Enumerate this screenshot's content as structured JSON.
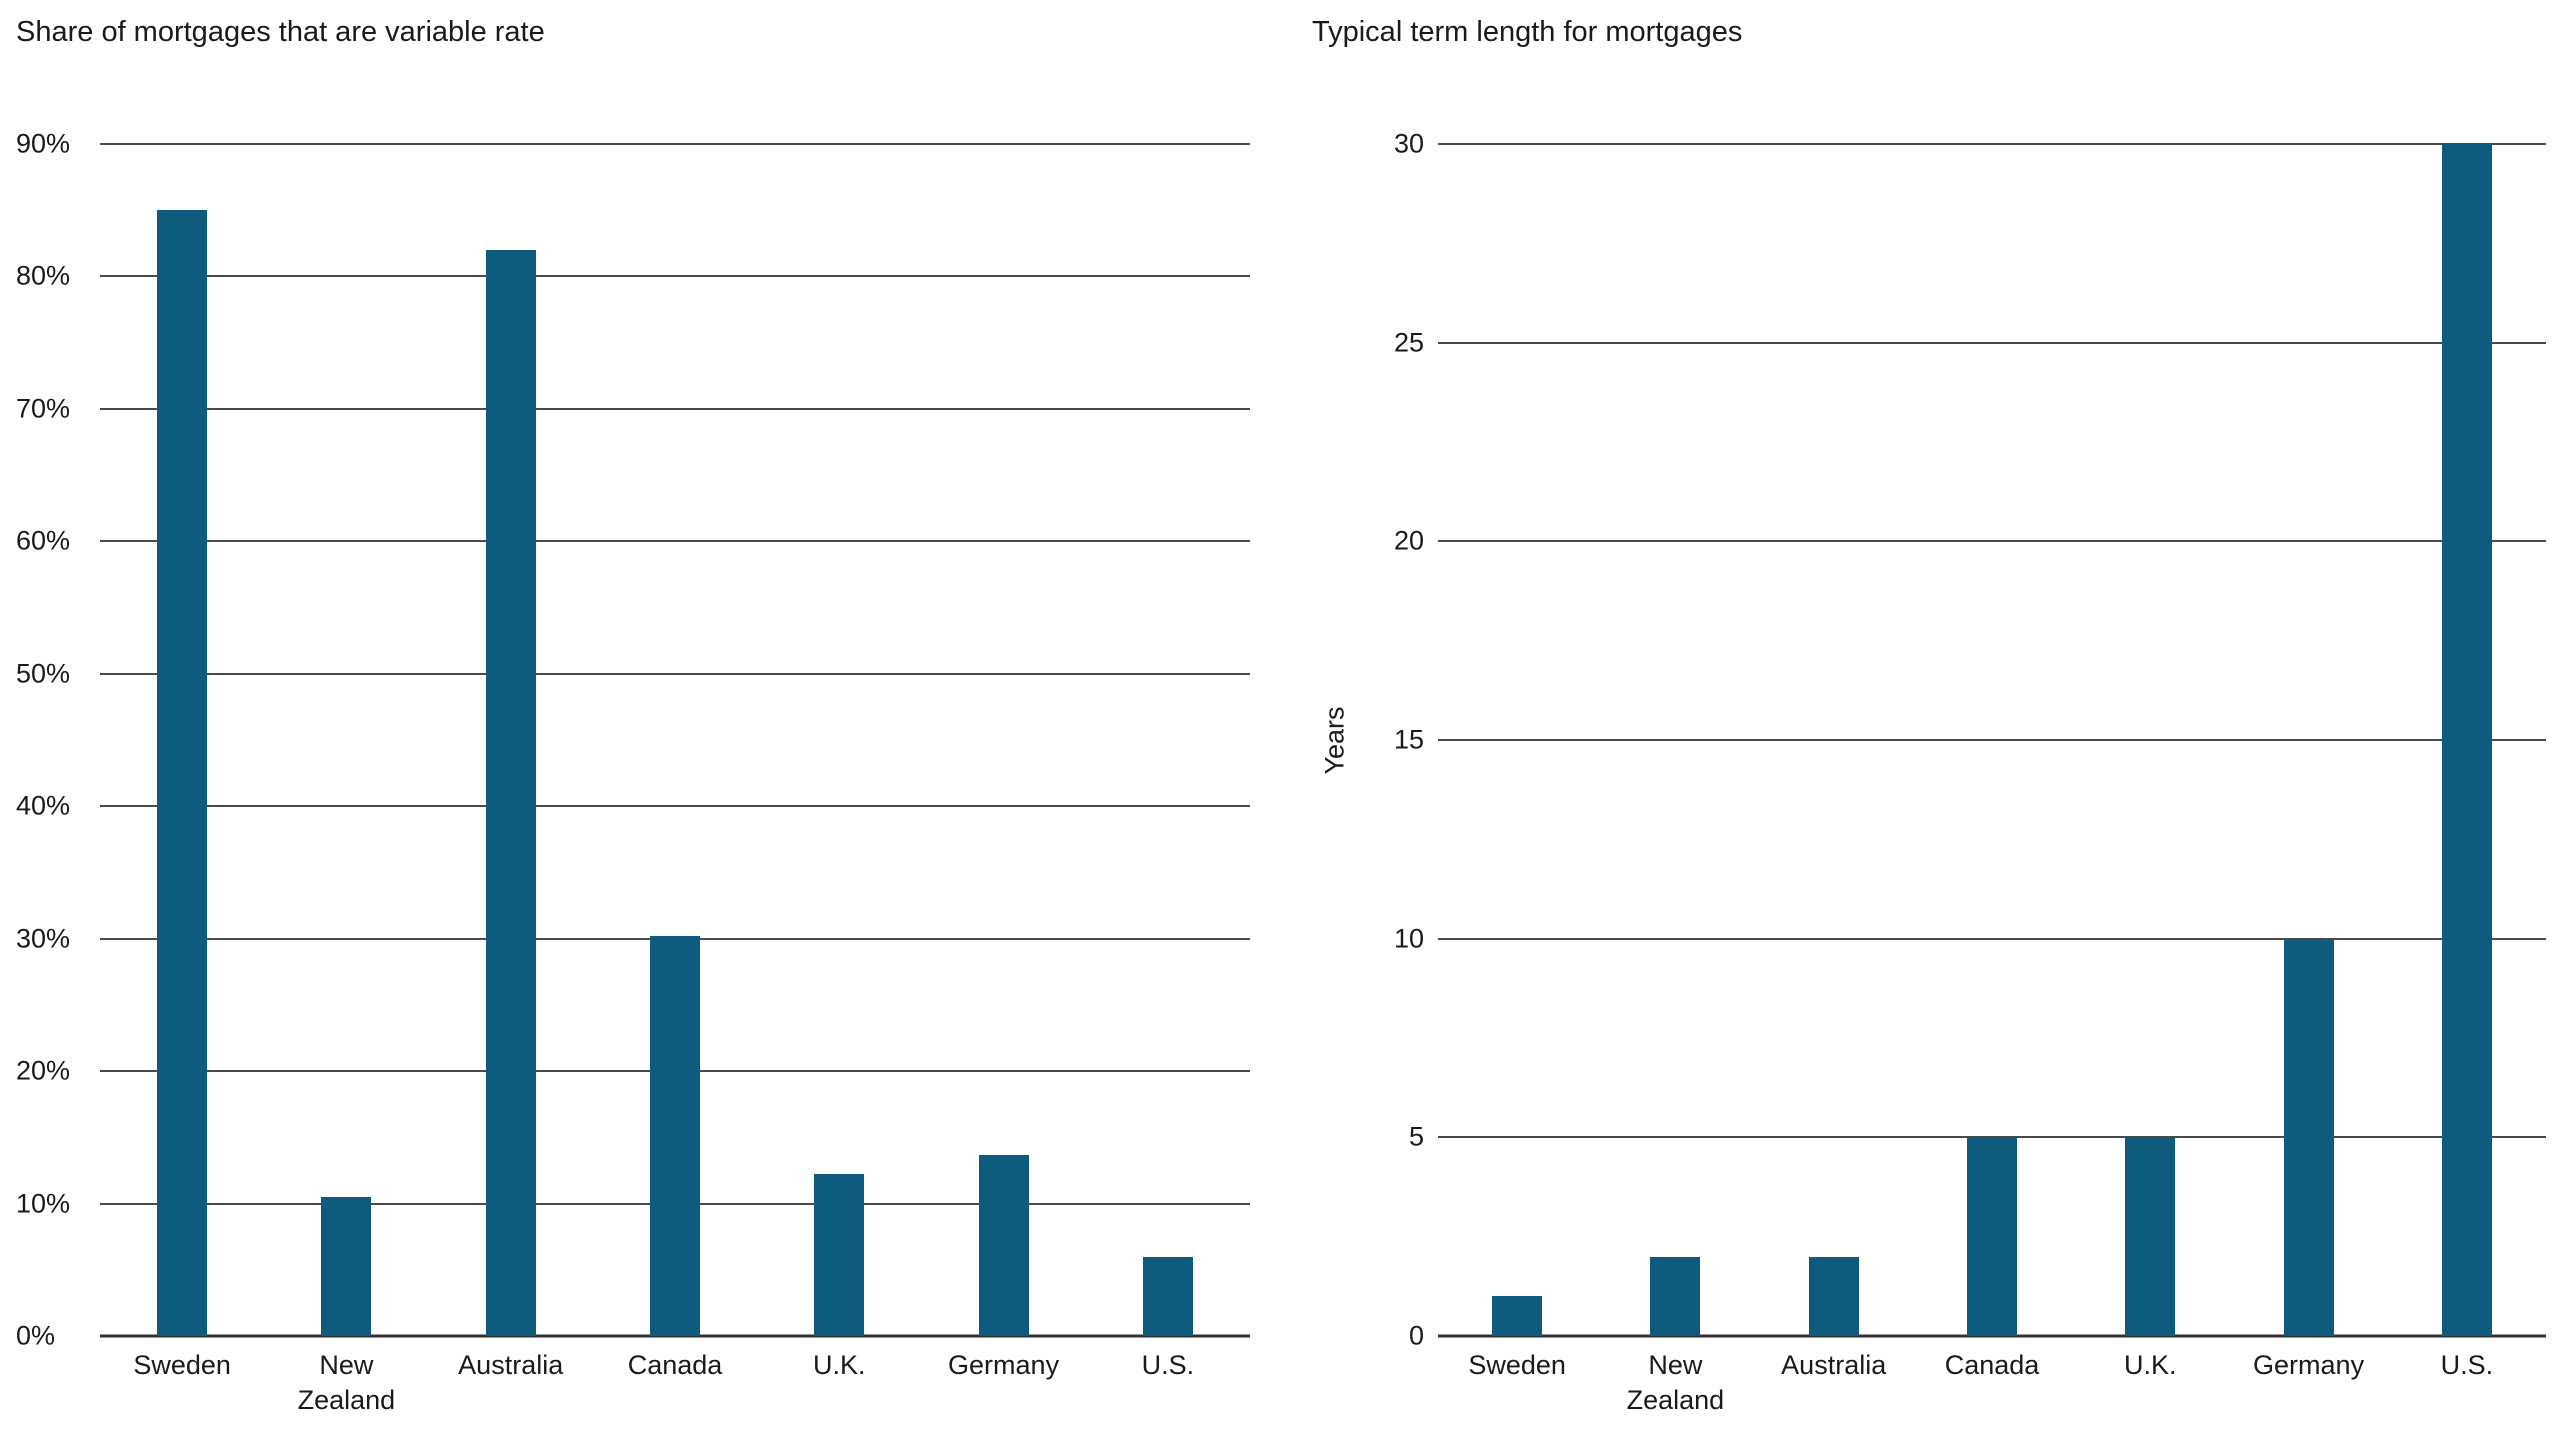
{
  "figure": {
    "background": "#ffffff"
  },
  "colors": {
    "bar": "#0d5c7e",
    "gridline": "#4a4a4a",
    "axis": "#333333",
    "text": "#1a1a1a"
  },
  "chart_data": [
    {
      "type": "bar",
      "title": "Share of mortgages that are variable rate",
      "ylabel": "",
      "xlabel": "",
      "ymin": 0,
      "ymax": 90,
      "ytick_step": 10,
      "ytick_suffix": "%",
      "grid": true,
      "legend": "none",
      "categories": [
        "Sweden",
        "New\nZealand",
        "Australia",
        "Canada",
        "U.K.",
        "Germany",
        "U.S."
      ],
      "values": [
        85,
        10.5,
        82,
        30.2,
        12.2,
        13.7,
        6
      ]
    },
    {
      "type": "bar",
      "title": "Typical term length for mortgages",
      "ylabel": "Years",
      "xlabel": "",
      "ymin": 0,
      "ymax": 30,
      "ytick_step": 5,
      "ytick_suffix": "",
      "grid": true,
      "legend": "none",
      "categories": [
        "Sweden",
        "New\nZealand",
        "Australia",
        "Canada",
        "U.K.",
        "Germany",
        "U.S."
      ],
      "values": [
        1,
        2,
        2,
        5,
        5,
        10,
        30
      ]
    }
  ]
}
